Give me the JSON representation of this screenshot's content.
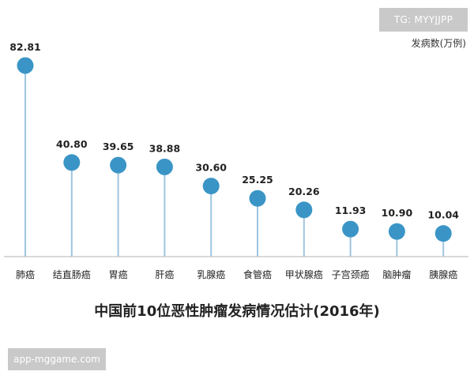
{
  "watermark_top": "TG: MYYJJPP",
  "watermark_bottom": "app-mggame.com",
  "colors": {
    "marker": "#3a95c6",
    "stem": "#9ec5df",
    "baseline": "#b0b0b0",
    "label": "#222222"
  },
  "chart_data": {
    "type": "lollipop",
    "title": "中国前10位恶性肿瘤发病情况估计(2016年)",
    "ylabel": "发病数(万例)",
    "categories": [
      "肺癌",
      "结直肠癌",
      "胃癌",
      "肝癌",
      "乳腺癌",
      "食管癌",
      "甲状腺癌",
      "子宫颈癌",
      "脑肿瘤",
      "胰腺癌"
    ],
    "values": [
      82.81,
      40.8,
      39.65,
      38.88,
      30.6,
      25.25,
      20.26,
      11.93,
      10.9,
      10.04
    ],
    "value_labels": [
      "82.81",
      "40.80",
      "39.65",
      "38.88",
      "30.60",
      "25.25",
      "20.26",
      "11.93",
      "10.90",
      "10.04"
    ],
    "ylim": [
      0,
      90
    ],
    "grid": false,
    "legend": "none"
  }
}
